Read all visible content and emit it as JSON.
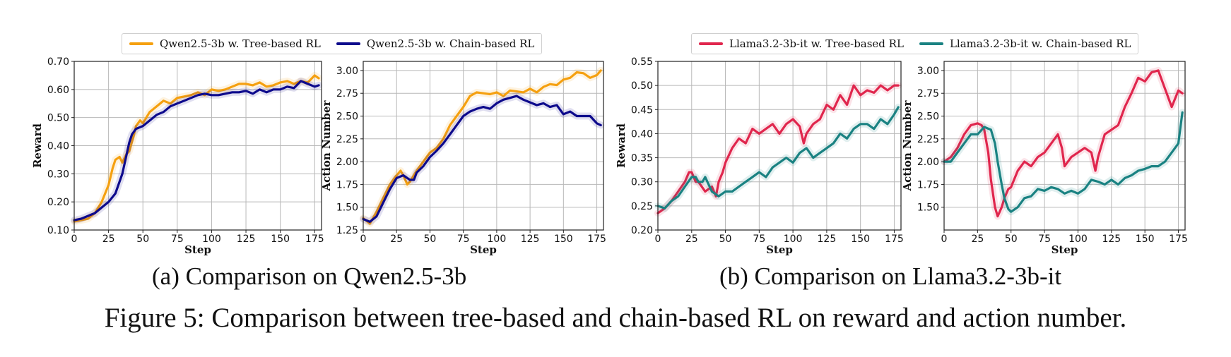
{
  "colors": {
    "qwen_tree": "#f5a00f",
    "qwen_chain": "#0d0a8c",
    "llama_tree": "#e0264d",
    "llama_chain": "#1a8282"
  },
  "legends": {
    "a": [
      {
        "label": "Qwen2.5-3b w. Tree-based RL",
        "color": "#f5a00f"
      },
      {
        "label": "Qwen2.5-3b w. Chain-based RL",
        "color": "#0d0a8c"
      }
    ],
    "b": [
      {
        "label": "Llama3.2-3b-it w. Tree-based RL",
        "color": "#e0264d"
      },
      {
        "label": "Llama3.2-3b-it w. Chain-based RL",
        "color": "#1a8282"
      }
    ]
  },
  "subcaptions": {
    "a": "(a) Comparison on Qwen2.5-3b",
    "b": "(b) Comparison on Llama3.2-3b-it"
  },
  "caption": "Figure 5: Comparison between tree-based and chain-based RL on reward and action number.",
  "chart_data": [
    {
      "type": "line",
      "xlabel": "Step",
      "ylabel": "Reward",
      "xlim": [
        0,
        180
      ],
      "ylim": [
        0.1,
        0.7
      ],
      "xticks": [
        0,
        25,
        50,
        75,
        100,
        125,
        150,
        175
      ],
      "yticks": [
        0.1,
        0.2,
        0.3,
        0.4,
        0.5,
        0.6,
        0.7
      ],
      "ytick_labels": [
        "0.10",
        "0.20",
        "0.30",
        "0.40",
        "0.50",
        "0.60",
        "0.70"
      ],
      "grid": true,
      "series": [
        {
          "name": "Qwen2.5-3b w. Tree-based RL",
          "color": "#f5a00f",
          "x": [
            0,
            5,
            10,
            15,
            20,
            25,
            28,
            30,
            33,
            35,
            38,
            40,
            43,
            45,
            48,
            50,
            55,
            60,
            65,
            70,
            75,
            80,
            85,
            90,
            95,
            100,
            105,
            110,
            115,
            120,
            125,
            130,
            135,
            140,
            145,
            150,
            155,
            160,
            165,
            170,
            175,
            178
          ],
          "y": [
            0.13,
            0.135,
            0.14,
            0.16,
            0.2,
            0.26,
            0.32,
            0.35,
            0.36,
            0.34,
            0.37,
            0.38,
            0.43,
            0.47,
            0.49,
            0.48,
            0.52,
            0.54,
            0.56,
            0.55,
            0.57,
            0.575,
            0.58,
            0.59,
            0.58,
            0.6,
            0.595,
            0.6,
            0.61,
            0.62,
            0.62,
            0.615,
            0.625,
            0.61,
            0.615,
            0.625,
            0.63,
            0.62,
            0.63,
            0.625,
            0.65,
            0.64
          ]
        },
        {
          "name": "Qwen2.5-3b w. Chain-based RL",
          "color": "#0d0a8c",
          "x": [
            0,
            5,
            10,
            15,
            20,
            25,
            30,
            35,
            40,
            42,
            45,
            50,
            55,
            60,
            65,
            70,
            75,
            80,
            85,
            90,
            95,
            100,
            105,
            110,
            115,
            120,
            125,
            130,
            135,
            140,
            145,
            150,
            155,
            160,
            165,
            170,
            175,
            178
          ],
          "y": [
            0.135,
            0.14,
            0.15,
            0.16,
            0.18,
            0.2,
            0.23,
            0.3,
            0.41,
            0.44,
            0.46,
            0.47,
            0.49,
            0.51,
            0.52,
            0.54,
            0.55,
            0.56,
            0.57,
            0.58,
            0.585,
            0.58,
            0.58,
            0.585,
            0.59,
            0.59,
            0.595,
            0.585,
            0.6,
            0.59,
            0.6,
            0.6,
            0.61,
            0.605,
            0.63,
            0.62,
            0.61,
            0.615
          ]
        }
      ]
    },
    {
      "type": "line",
      "xlabel": "Step",
      "ylabel": "Action Number",
      "xlim": [
        0,
        180
      ],
      "ylim": [
        1.25,
        3.1
      ],
      "xticks": [
        0,
        25,
        50,
        75,
        100,
        125,
        150,
        175
      ],
      "yticks": [
        1.25,
        1.5,
        1.75,
        2.0,
        2.25,
        2.5,
        2.75,
        3.0
      ],
      "ytick_labels": [
        "1.25",
        "1.50",
        "1.75",
        "2.00",
        "2.25",
        "2.50",
        "2.75",
        "3.00"
      ],
      "grid": true,
      "series": [
        {
          "name": "Qwen2.5-3b w. Tree-based RL",
          "color": "#f5a00f",
          "x": [
            0,
            5,
            10,
            15,
            20,
            25,
            28,
            30,
            33,
            35,
            40,
            45,
            50,
            55,
            60,
            65,
            70,
            75,
            80,
            85,
            90,
            95,
            100,
            105,
            110,
            115,
            120,
            125,
            130,
            135,
            140,
            145,
            150,
            155,
            160,
            165,
            170,
            175,
            178
          ],
          "y": [
            1.38,
            1.32,
            1.45,
            1.6,
            1.75,
            1.85,
            1.9,
            1.85,
            1.75,
            1.78,
            1.9,
            2.0,
            2.1,
            2.15,
            2.25,
            2.4,
            2.5,
            2.6,
            2.72,
            2.76,
            2.75,
            2.74,
            2.76,
            2.72,
            2.78,
            2.77,
            2.76,
            2.8,
            2.76,
            2.82,
            2.85,
            2.84,
            2.9,
            2.92,
            2.98,
            2.97,
            2.92,
            2.95,
            3.0
          ]
        },
        {
          "name": "Qwen2.5-3b w. Chain-based RL",
          "color": "#0d0a8c",
          "x": [
            0,
            5,
            10,
            15,
            20,
            25,
            30,
            35,
            38,
            40,
            45,
            50,
            55,
            60,
            65,
            70,
            75,
            80,
            85,
            90,
            95,
            100,
            105,
            110,
            115,
            120,
            125,
            130,
            135,
            140,
            145,
            150,
            155,
            160,
            165,
            170,
            175,
            178
          ],
          "y": [
            1.37,
            1.34,
            1.4,
            1.55,
            1.7,
            1.82,
            1.85,
            1.8,
            1.8,
            1.88,
            1.95,
            2.05,
            2.12,
            2.2,
            2.3,
            2.4,
            2.5,
            2.55,
            2.58,
            2.6,
            2.58,
            2.64,
            2.68,
            2.7,
            2.72,
            2.68,
            2.65,
            2.62,
            2.64,
            2.6,
            2.62,
            2.52,
            2.55,
            2.5,
            2.5,
            2.5,
            2.42,
            2.4
          ]
        }
      ]
    },
    {
      "type": "line",
      "xlabel": "Step",
      "ylabel": "Reward",
      "xlim": [
        0,
        180
      ],
      "ylim": [
        0.2,
        0.55
      ],
      "xticks": [
        0,
        25,
        50,
        75,
        100,
        125,
        150,
        175
      ],
      "yticks": [
        0.2,
        0.25,
        0.3,
        0.35,
        0.4,
        0.45,
        0.5,
        0.55
      ],
      "ytick_labels": [
        "0.20",
        "0.25",
        "0.30",
        "0.35",
        "0.40",
        "0.45",
        "0.50",
        "0.55"
      ],
      "grid": true,
      "series": [
        {
          "name": "Llama3.2-3b-it w. Tree-based RL",
          "color": "#e0264d",
          "x": [
            0,
            5,
            10,
            15,
            20,
            23,
            25,
            28,
            30,
            35,
            40,
            43,
            45,
            48,
            50,
            55,
            60,
            65,
            70,
            75,
            80,
            85,
            90,
            95,
            100,
            105,
            108,
            110,
            115,
            120,
            125,
            130,
            135,
            140,
            145,
            150,
            155,
            160,
            165,
            170,
            175,
            178
          ],
          "y": [
            0.235,
            0.245,
            0.26,
            0.28,
            0.3,
            0.32,
            0.32,
            0.3,
            0.3,
            0.28,
            0.29,
            0.27,
            0.3,
            0.32,
            0.34,
            0.37,
            0.39,
            0.38,
            0.41,
            0.4,
            0.41,
            0.42,
            0.4,
            0.42,
            0.43,
            0.415,
            0.38,
            0.4,
            0.42,
            0.43,
            0.46,
            0.45,
            0.48,
            0.46,
            0.5,
            0.48,
            0.49,
            0.485,
            0.5,
            0.49,
            0.5,
            0.5
          ]
        },
        {
          "name": "Llama3.2-3b-it w. Chain-based RL",
          "color": "#1a8282",
          "x": [
            0,
            5,
            10,
            15,
            20,
            25,
            28,
            30,
            33,
            35,
            40,
            45,
            50,
            55,
            60,
            65,
            70,
            75,
            80,
            85,
            90,
            95,
            100,
            105,
            110,
            115,
            120,
            125,
            130,
            135,
            140,
            145,
            150,
            155,
            160,
            165,
            170,
            175,
            178
          ],
          "y": [
            0.25,
            0.245,
            0.26,
            0.27,
            0.29,
            0.31,
            0.31,
            0.3,
            0.3,
            0.31,
            0.28,
            0.27,
            0.28,
            0.28,
            0.29,
            0.3,
            0.31,
            0.32,
            0.31,
            0.33,
            0.34,
            0.35,
            0.34,
            0.36,
            0.37,
            0.35,
            0.36,
            0.37,
            0.38,
            0.4,
            0.39,
            0.41,
            0.42,
            0.42,
            0.41,
            0.43,
            0.42,
            0.44,
            0.455
          ]
        }
      ]
    },
    {
      "type": "line",
      "xlabel": "Step",
      "ylabel": "Action Number",
      "xlim": [
        0,
        180
      ],
      "ylim": [
        1.25,
        3.1
      ],
      "xticks": [
        0,
        25,
        50,
        75,
        100,
        125,
        150,
        175
      ],
      "yticks": [
        1.5,
        1.75,
        2.0,
        2.25,
        2.5,
        2.75,
        3.0
      ],
      "ytick_labels": [
        "1.50",
        "1.75",
        "2.00",
        "2.25",
        "2.50",
        "2.75",
        "3.00"
      ],
      "grid": true,
      "series": [
        {
          "name": "Llama3.2-3b-it w. Tree-based RL",
          "color": "#e0264d",
          "x": [
            0,
            5,
            10,
            15,
            20,
            25,
            28,
            30,
            33,
            35,
            38,
            40,
            43,
            45,
            48,
            50,
            55,
            60,
            65,
            70,
            75,
            80,
            85,
            88,
            90,
            95,
            100,
            105,
            110,
            113,
            115,
            120,
            125,
            130,
            135,
            140,
            145,
            150,
            155,
            160,
            165,
            170,
            175,
            178
          ],
          "y": [
            2.0,
            2.05,
            2.15,
            2.3,
            2.4,
            2.42,
            2.4,
            2.35,
            2.1,
            1.8,
            1.5,
            1.4,
            1.5,
            1.6,
            1.7,
            1.72,
            1.9,
            2.0,
            1.95,
            2.05,
            2.1,
            2.2,
            2.3,
            2.15,
            1.95,
            2.05,
            2.1,
            2.15,
            2.1,
            1.9,
            2.05,
            2.3,
            2.35,
            2.4,
            2.6,
            2.75,
            2.92,
            2.88,
            2.98,
            3.0,
            2.8,
            2.6,
            2.78,
            2.75
          ]
        },
        {
          "name": "Llama3.2-3b-it w. Chain-based RL",
          "color": "#1a8282",
          "x": [
            0,
            5,
            10,
            15,
            20,
            25,
            30,
            35,
            38,
            40,
            43,
            45,
            48,
            50,
            55,
            60,
            65,
            70,
            75,
            80,
            85,
            90,
            95,
            100,
            105,
            110,
            115,
            120,
            125,
            130,
            135,
            140,
            145,
            150,
            155,
            160,
            165,
            170,
            175,
            178
          ],
          "y": [
            2.0,
            2.0,
            2.1,
            2.2,
            2.3,
            2.3,
            2.38,
            2.35,
            2.2,
            2.0,
            1.75,
            1.6,
            1.48,
            1.45,
            1.5,
            1.6,
            1.62,
            1.7,
            1.68,
            1.72,
            1.7,
            1.65,
            1.68,
            1.65,
            1.7,
            1.8,
            1.78,
            1.75,
            1.8,
            1.75,
            1.82,
            1.85,
            1.9,
            1.92,
            1.95,
            1.95,
            2.0,
            2.1,
            2.2,
            2.54
          ]
        }
      ]
    }
  ]
}
